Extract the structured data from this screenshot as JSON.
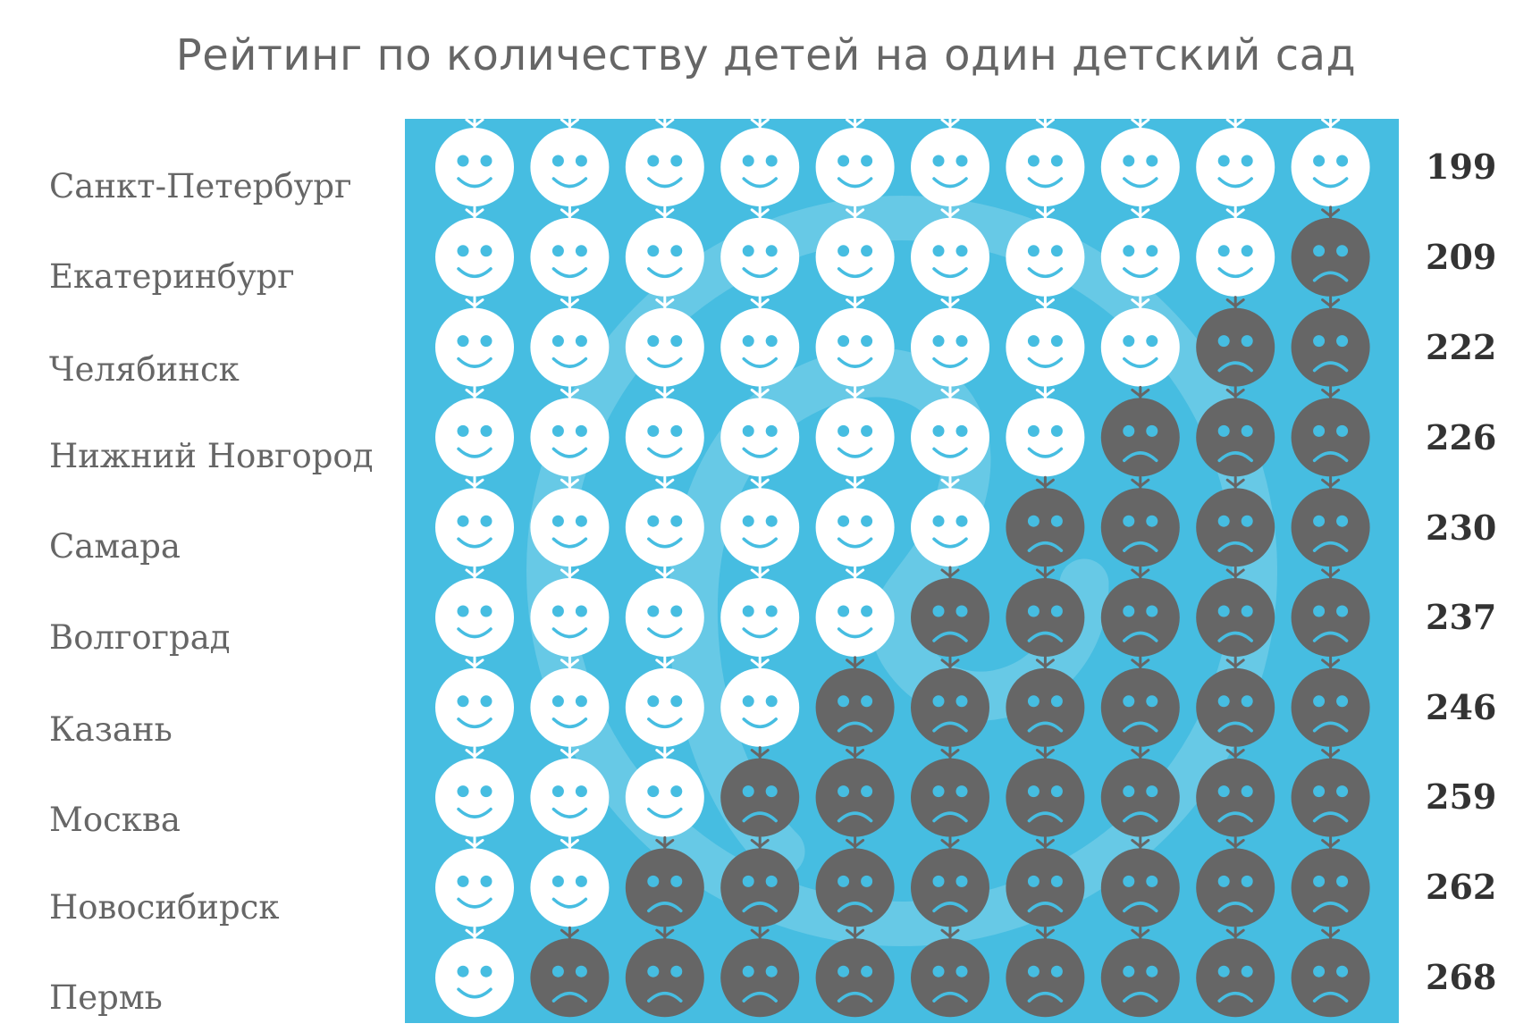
{
  "chart_data": {
    "type": "pictogram",
    "title": "Рейтинг по количеству детей на один детский сад",
    "categories": [
      "Санкт-Петербург",
      "Екатеринбург",
      "Челябинск",
      "Нижний Новгород",
      "Самара",
      "Волгоград",
      "Казань",
      "Москва",
      "Новосибирск",
      "Пермь"
    ],
    "values": [
      "199",
      "209",
      "222",
      "226",
      "230",
      "237",
      "246",
      "259",
      "262",
      "268"
    ],
    "happy_counts": [
      10,
      9,
      8,
      7,
      6,
      5,
      4,
      3,
      2,
      1
    ],
    "icons_per_row": 10,
    "colors": {
      "background": "#46bde1",
      "happy_face": "#ffffff",
      "sad_face": "#666666",
      "features": "#46bde1"
    }
  }
}
